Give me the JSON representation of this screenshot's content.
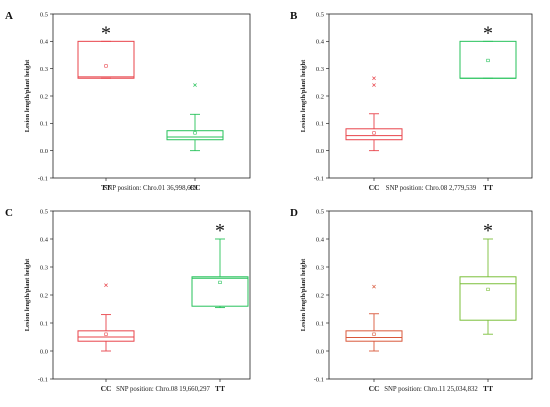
{
  "chart_data": [
    {
      "panel_label": "A",
      "type": "box",
      "ylabel": "Lesion length/plant height",
      "ylim": [
        -0.1,
        0.5
      ],
      "yticks": [
        "-0.1",
        "0.0",
        "0.1",
        "0.2",
        "0.3",
        "0.4",
        "0.5"
      ],
      "categories": [
        "TT",
        "CC"
      ],
      "caption": "SNP position: Chro.01 36,998,689",
      "significant": "*",
      "significant_index": 0,
      "boxes": [
        {
          "category": "TT",
          "color": "#e8434a",
          "q1": 0.265,
          "median": 0.27,
          "q3": 0.4,
          "whisker_low": 0.265,
          "whisker_high": 0.4,
          "mean": 0.31,
          "outliers": []
        },
        {
          "category": "CC",
          "color": "#26c25a",
          "q1": 0.04,
          "median": 0.05,
          "q3": 0.073,
          "whisker_low": 0.0,
          "whisker_high": 0.133,
          "mean": 0.065,
          "outliers": [
            0.24
          ]
        }
      ]
    },
    {
      "panel_label": "B",
      "type": "box",
      "ylabel": "Lesion length/plant height",
      "ylim": [
        -0.1,
        0.5
      ],
      "yticks": [
        "-0.1",
        "0.0",
        "0.1",
        "0.2",
        "0.3",
        "0.4",
        "0.5"
      ],
      "categories": [
        "CC",
        "TT"
      ],
      "caption": "SNP position: Chro.08 2,779,539",
      "significant": "*",
      "significant_index": 1,
      "boxes": [
        {
          "category": "CC",
          "color": "#e8434a",
          "q1": 0.04,
          "median": 0.055,
          "q3": 0.08,
          "whisker_low": 0.0,
          "whisker_high": 0.135,
          "mean": 0.065,
          "outliers": [
            0.24,
            0.265
          ]
        },
        {
          "category": "TT",
          "color": "#26c25a",
          "q1": 0.265,
          "median": 0.265,
          "q3": 0.4,
          "whisker_low": 0.265,
          "whisker_high": 0.4,
          "mean": 0.33,
          "outliers": []
        }
      ]
    },
    {
      "panel_label": "C",
      "type": "box",
      "ylabel": "Lesion length/plant height",
      "ylim": [
        -0.1,
        0.5
      ],
      "yticks": [
        "-0.1",
        "0.0",
        "0.1",
        "0.2",
        "0.3",
        "0.4",
        "0.5"
      ],
      "categories": [
        "CC",
        "TT"
      ],
      "caption": "SNP position: Chro.08 19,660,297",
      "significant": "*",
      "significant_index": 1,
      "boxes": [
        {
          "category": "CC",
          "color": "#e8434a",
          "q1": 0.035,
          "median": 0.05,
          "q3": 0.072,
          "whisker_low": 0.0,
          "whisker_high": 0.13,
          "mean": 0.06,
          "outliers": [
            0.235
          ]
        },
        {
          "category": "TT",
          "color": "#26c25a",
          "q1": 0.16,
          "median": 0.26,
          "q3": 0.265,
          "whisker_low": 0.155,
          "whisker_high": 0.4,
          "mean": 0.245,
          "outliers": []
        }
      ]
    },
    {
      "panel_label": "D",
      "type": "box",
      "ylabel": "Lesion length/plant height",
      "ylim": [
        -0.1,
        0.5
      ],
      "yticks": [
        "-0.1",
        "0.0",
        "0.1",
        "0.2",
        "0.3",
        "0.4",
        "0.5"
      ],
      "categories": [
        "CC",
        "TT"
      ],
      "caption": "SNP position: Chro.11 25,034,832",
      "significant": "*",
      "significant_index": 1,
      "boxes": [
        {
          "category": "CC",
          "color": "#d9573a",
          "q1": 0.035,
          "median": 0.048,
          "q3": 0.072,
          "whisker_low": 0.0,
          "whisker_high": 0.133,
          "mean": 0.06,
          "outliers": [
            0.23
          ]
        },
        {
          "category": "TT",
          "color": "#7bbf3a",
          "q1": 0.11,
          "median": 0.24,
          "q3": 0.265,
          "whisker_low": 0.06,
          "whisker_high": 0.4,
          "mean": 0.22,
          "outliers": []
        }
      ]
    }
  ]
}
